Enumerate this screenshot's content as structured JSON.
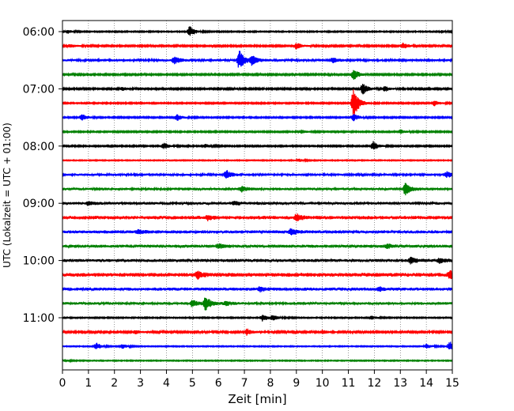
{
  "chart_data": {
    "type": "line",
    "subtype": "helicorder",
    "xlabel": "Zeit  [min]",
    "ylabel": "UTC (Lokalzeit = UTC + 01:00)",
    "xlim": [
      0,
      15
    ],
    "x_ticks": [
      "0",
      "1",
      "2",
      "3",
      "4",
      "5",
      "6",
      "7",
      "8",
      "9",
      "10",
      "11",
      "12",
      "13",
      "14",
      "15"
    ],
    "y_ticks": [
      "06:00",
      "07:00",
      "08:00",
      "09:00",
      "10:00",
      "11:00"
    ],
    "vertical_grid": true,
    "grid_style": "dotted",
    "trace_minutes": 15,
    "trace_colors": [
      "#000000",
      "#ff0000",
      "#0000ff",
      "#008000"
    ],
    "traces": [
      {
        "start": "06:00",
        "noise": 0.06,
        "events": [
          {
            "x": 4.9,
            "amp": 0.95
          },
          {
            "x": 0.2,
            "amp": 0.3
          },
          {
            "x": 14.6,
            "amp": 0.25
          }
        ]
      },
      {
        "start": "06:15",
        "noise": 0.08,
        "events": [
          {
            "x": 9.0,
            "amp": 0.55
          },
          {
            "x": 13.1,
            "amp": 0.45
          },
          {
            "x": 0.3,
            "amp": 0.3
          }
        ]
      },
      {
        "start": "06:30",
        "noise": 0.12,
        "events": [
          {
            "x": 4.3,
            "amp": 0.7
          },
          {
            "x": 6.8,
            "amp": 1.6
          },
          {
            "x": 7.3,
            "amp": 0.8
          },
          {
            "x": 10.4,
            "amp": 0.4
          }
        ]
      },
      {
        "start": "06:45",
        "noise": 0.08,
        "events": [
          {
            "x": 11.2,
            "amp": 0.9
          }
        ]
      },
      {
        "start": "07:00",
        "noise": 0.08,
        "events": [
          {
            "x": 11.55,
            "amp": 0.9
          },
          {
            "x": 12.4,
            "amp": 0.45
          },
          {
            "x": 2.3,
            "amp": 0.3
          }
        ]
      },
      {
        "start": "07:15",
        "noise": 0.07,
        "events": [
          {
            "x": 11.2,
            "amp": 2.6
          },
          {
            "x": 14.3,
            "amp": 0.45
          }
        ]
      },
      {
        "start": "07:30",
        "noise": 0.07,
        "events": [
          {
            "x": 4.4,
            "amp": 0.55
          },
          {
            "x": 0.75,
            "amp": 0.6
          },
          {
            "x": 11.2,
            "amp": 0.6
          }
        ]
      },
      {
        "start": "07:45",
        "noise": 0.07,
        "events": [
          {
            "x": 9.2,
            "amp": 0.3
          },
          {
            "x": 13.0,
            "amp": 0.35
          }
        ]
      },
      {
        "start": "08:00",
        "noise": 0.07,
        "events": [
          {
            "x": 3.9,
            "amp": 0.6
          },
          {
            "x": 11.95,
            "amp": 0.75
          },
          {
            "x": 5.5,
            "amp": 0.3
          }
        ]
      },
      {
        "start": "08:15",
        "noise": 0.05,
        "events": [
          {
            "x": 9.1,
            "amp": 0.25
          }
        ]
      },
      {
        "start": "08:30",
        "noise": 0.12,
        "events": [
          {
            "x": 6.3,
            "amp": 0.7
          },
          {
            "x": 14.8,
            "amp": 0.5
          }
        ]
      },
      {
        "start": "08:45",
        "noise": 0.14,
        "events": [
          {
            "x": 13.2,
            "amp": 1.1
          },
          {
            "x": 6.9,
            "amp": 0.45
          }
        ]
      },
      {
        "start": "09:00",
        "noise": 0.14,
        "events": [
          {
            "x": 1.0,
            "amp": 0.35
          },
          {
            "x": 6.6,
            "amp": 0.35
          }
        ]
      },
      {
        "start": "09:15",
        "noise": 0.18,
        "events": [
          {
            "x": 9.0,
            "amp": 0.6
          },
          {
            "x": 5.6,
            "amp": 0.35
          }
        ]
      },
      {
        "start": "09:30",
        "noise": 0.16,
        "events": [
          {
            "x": 8.8,
            "amp": 0.5
          },
          {
            "x": 2.9,
            "amp": 0.3
          }
        ]
      },
      {
        "start": "09:45",
        "noise": 0.16,
        "events": [
          {
            "x": 6.0,
            "amp": 0.35
          },
          {
            "x": 12.5,
            "amp": 0.35
          }
        ]
      },
      {
        "start": "10:00",
        "noise": 0.16,
        "events": [
          {
            "x": 13.4,
            "amp": 0.5
          },
          {
            "x": 14.5,
            "amp": 0.4
          }
        ]
      },
      {
        "start": "10:15",
        "noise": 0.2,
        "events": [
          {
            "x": 5.2,
            "amp": 0.6
          },
          {
            "x": 14.9,
            "amp": 0.6
          }
        ]
      },
      {
        "start": "10:30",
        "noise": 0.16,
        "events": [
          {
            "x": 7.6,
            "amp": 0.35
          },
          {
            "x": 12.2,
            "amp": 0.3
          }
        ]
      },
      {
        "start": "10:45",
        "noise": 0.14,
        "events": [
          {
            "x": 5.5,
            "amp": 1.15
          },
          {
            "x": 5.0,
            "amp": 0.55
          },
          {
            "x": 6.3,
            "amp": 0.35
          }
        ]
      },
      {
        "start": "11:00",
        "noise": 0.06,
        "events": [
          {
            "x": 7.7,
            "amp": 0.6
          },
          {
            "x": 8.1,
            "amp": 0.45
          },
          {
            "x": 11.9,
            "amp": 0.35
          }
        ]
      },
      {
        "start": "11:15",
        "noise": 0.09,
        "events": [
          {
            "x": 7.1,
            "amp": 0.55
          },
          {
            "x": 10.0,
            "amp": 0.4
          },
          {
            "x": 2.8,
            "amp": 0.3
          }
        ]
      },
      {
        "start": "11:30",
        "noise": 0.05,
        "events": [
          {
            "x": 1.3,
            "amp": 0.6
          },
          {
            "x": 2.3,
            "amp": 0.4
          },
          {
            "x": 14.0,
            "amp": 0.4
          },
          {
            "x": 14.9,
            "amp": 0.9
          }
        ]
      },
      {
        "start": "11:45",
        "noise": 0.05,
        "events": [
          {
            "x": 0.1,
            "amp": 0.2
          }
        ]
      }
    ]
  }
}
